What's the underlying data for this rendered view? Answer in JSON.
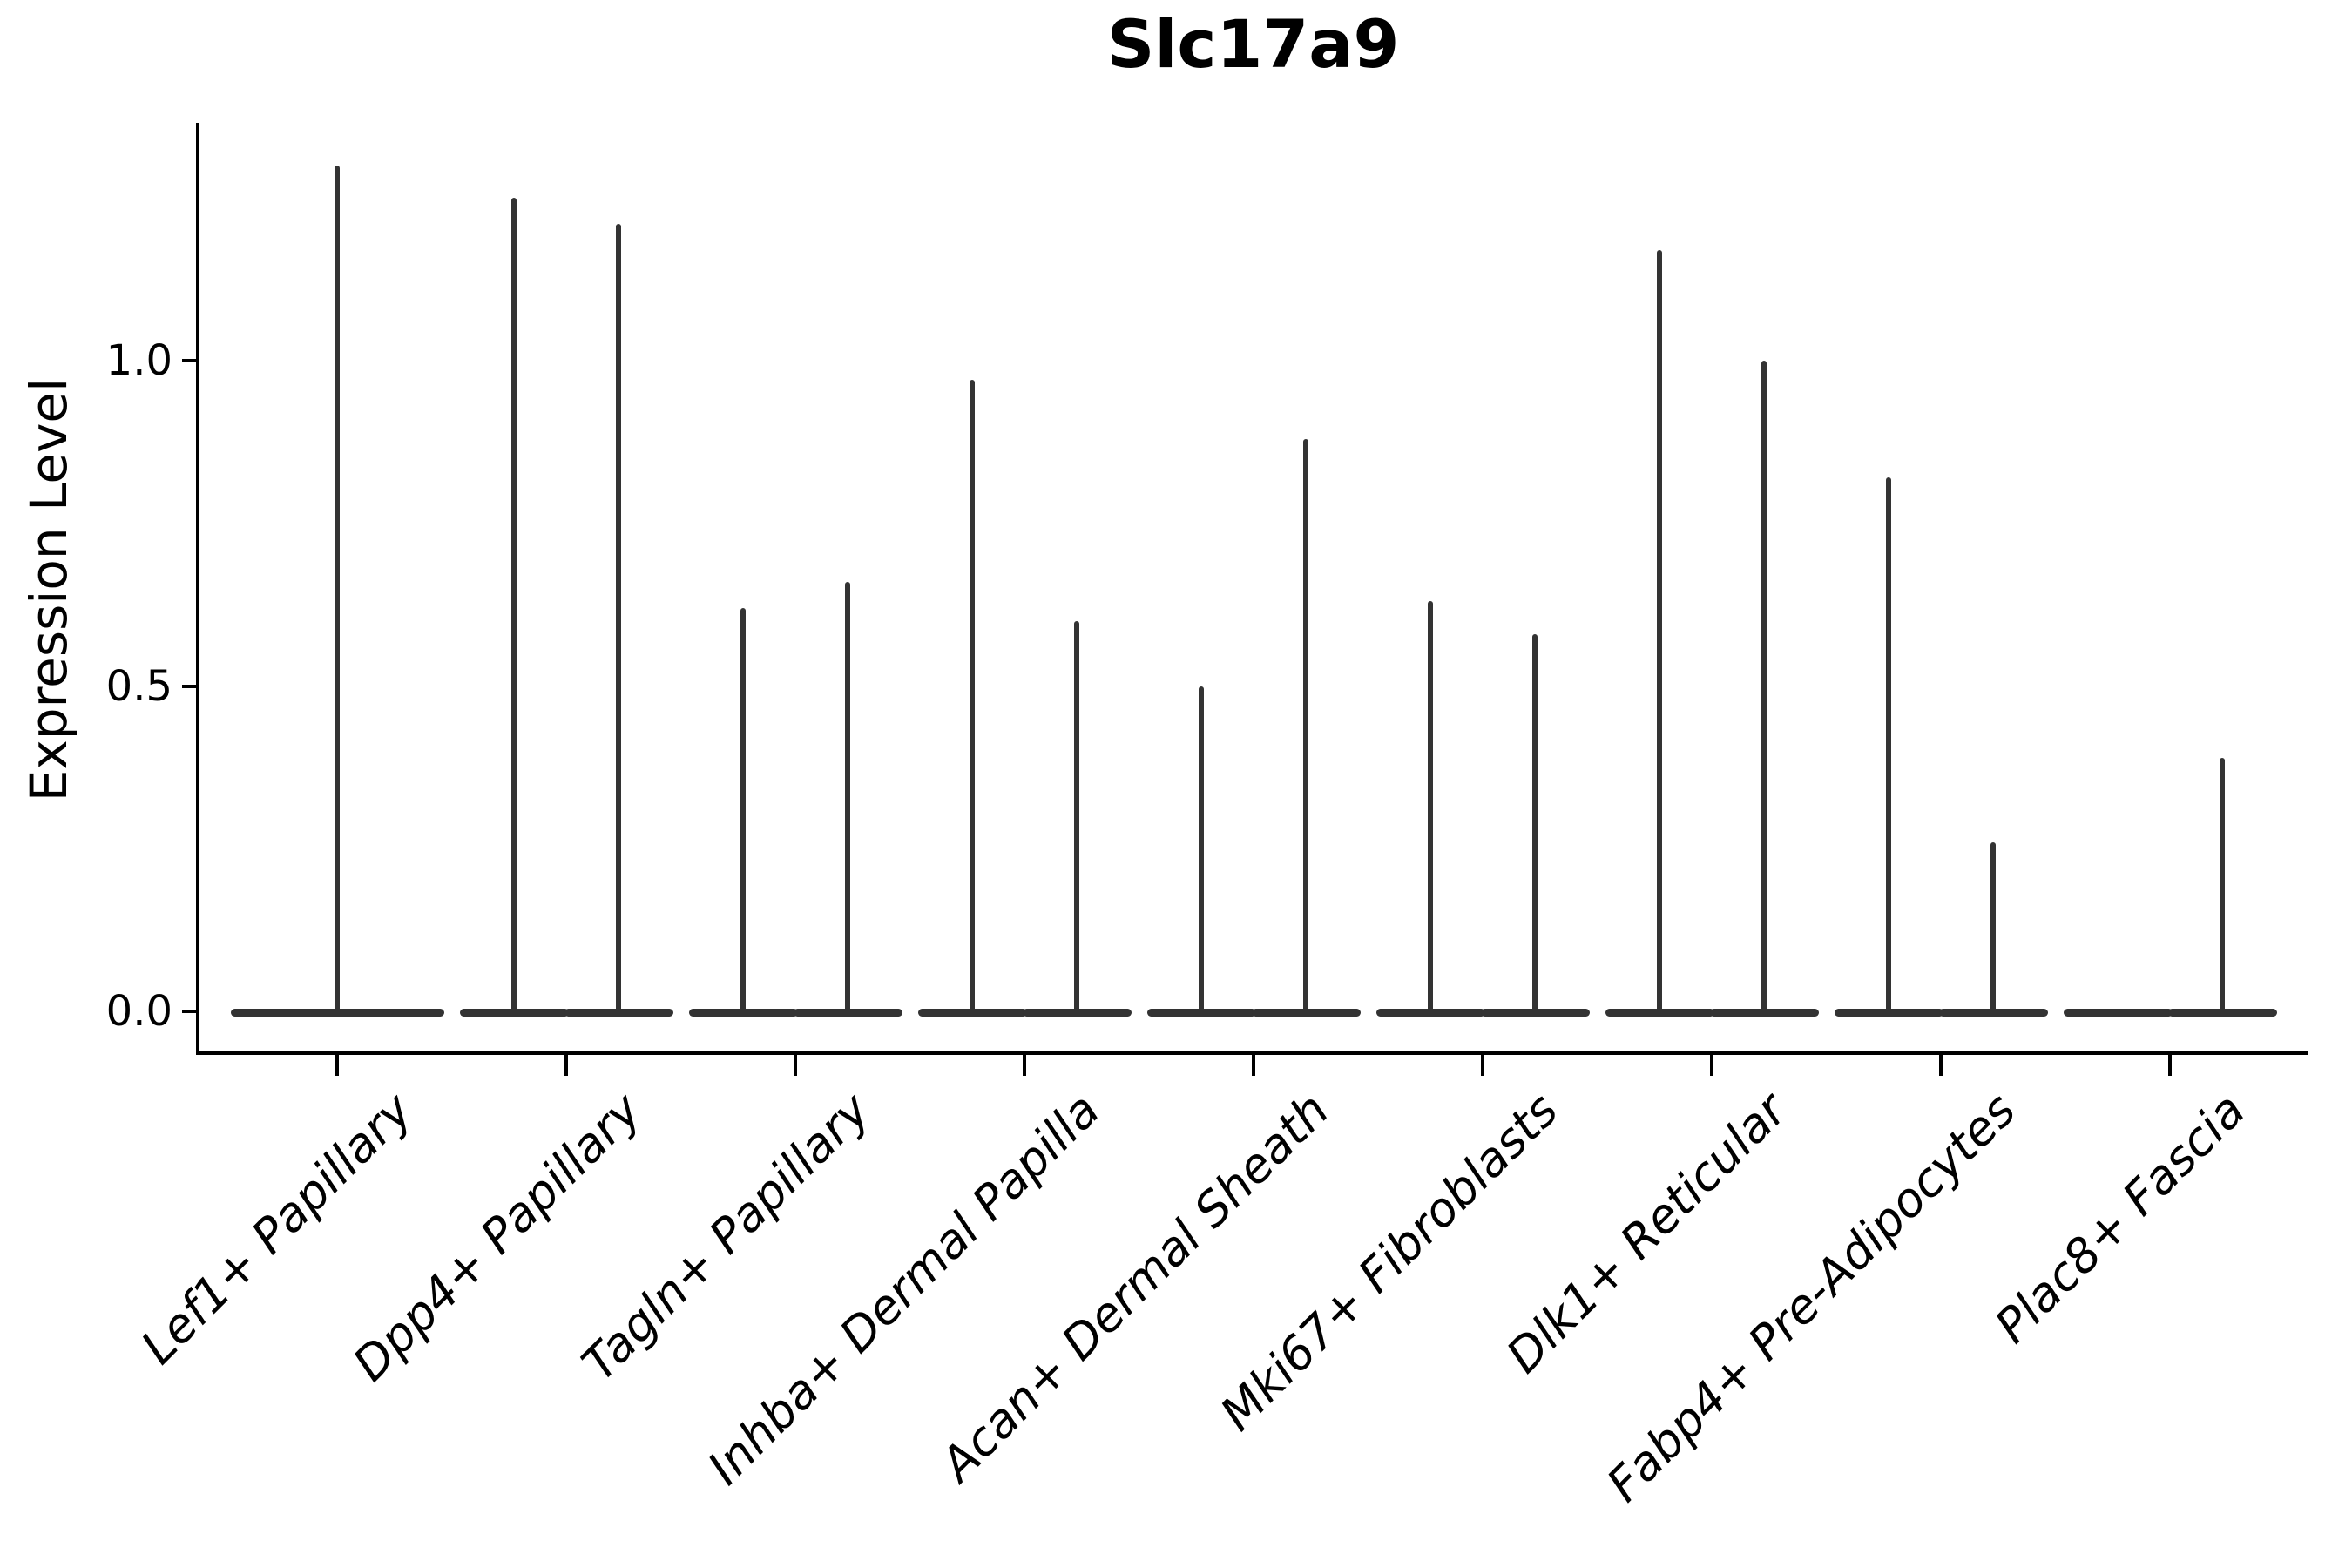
{
  "title": "Slc17a9",
  "ylabel": "Expression Level",
  "ytick_labels": [
    "0.0",
    "0.5",
    "1.0"
  ],
  "colors": {
    "violin": "#333333",
    "axis": "#000000",
    "text": "#000000",
    "background": "#ffffff"
  },
  "chart_data": {
    "type": "violin",
    "title": "Slc17a9",
    "xlabel": "",
    "ylabel": "Expression Level",
    "yticks": [
      0.0,
      0.5,
      1.0
    ],
    "ylim": [
      -0.07,
      1.37
    ],
    "grid": false,
    "legend": false,
    "categories": [
      "Lef1+ Papillary",
      "Dpp4+ Papillary",
      "Tagln+ Papillary",
      "Inhba+ Dermal Papilla",
      "Acan+ Dermal Sheath",
      "Mki67+ Fibroblasts",
      "Dlk1+ Reticular",
      "Fabp4+ Pre-Adipocytes",
      "Plac8+ Fascia"
    ],
    "groups": [
      {
        "category": "Lef1+ Papillary",
        "violins": [
          {
            "position": "center",
            "max_expression": 1.3
          }
        ]
      },
      {
        "category": "Dpp4+ Papillary",
        "violins": [
          {
            "position": "left",
            "max_expression": 1.25
          },
          {
            "position": "right",
            "max_expression": 1.21
          }
        ]
      },
      {
        "category": "Tagln+ Papillary",
        "violins": [
          {
            "position": "left",
            "max_expression": 0.62
          },
          {
            "position": "right",
            "max_expression": 0.66
          }
        ]
      },
      {
        "category": "Inhba+ Dermal Papilla",
        "violins": [
          {
            "position": "left",
            "max_expression": 0.97
          },
          {
            "position": "right",
            "max_expression": 0.6
          }
        ]
      },
      {
        "category": "Acan+ Dermal Sheath",
        "violins": [
          {
            "position": "left",
            "max_expression": 0.5
          },
          {
            "position": "right",
            "max_expression": 0.88
          }
        ]
      },
      {
        "category": "Mki67+ Fibroblasts",
        "violins": [
          {
            "position": "left",
            "max_expression": 0.63
          },
          {
            "position": "right",
            "max_expression": 0.58
          }
        ]
      },
      {
        "category": "Dlk1+ Reticular",
        "violins": [
          {
            "position": "left",
            "max_expression": 1.17
          },
          {
            "position": "right",
            "max_expression": 1.0
          }
        ]
      },
      {
        "category": "Fabp4+ Pre-Adipocytes",
        "violins": [
          {
            "position": "left",
            "max_expression": 0.82
          },
          {
            "position": "right",
            "max_expression": 0.26
          }
        ]
      },
      {
        "category": "Plac8+ Fascia",
        "violins": [
          {
            "position": "left",
            "max_expression": 0.0
          },
          {
            "position": "right",
            "max_expression": 0.39
          }
        ]
      }
    ],
    "shape_note": "Each violin is mostly zero-density: a wide flat base at expression 0 with a thin vertical spike up to the maximum expression value."
  }
}
